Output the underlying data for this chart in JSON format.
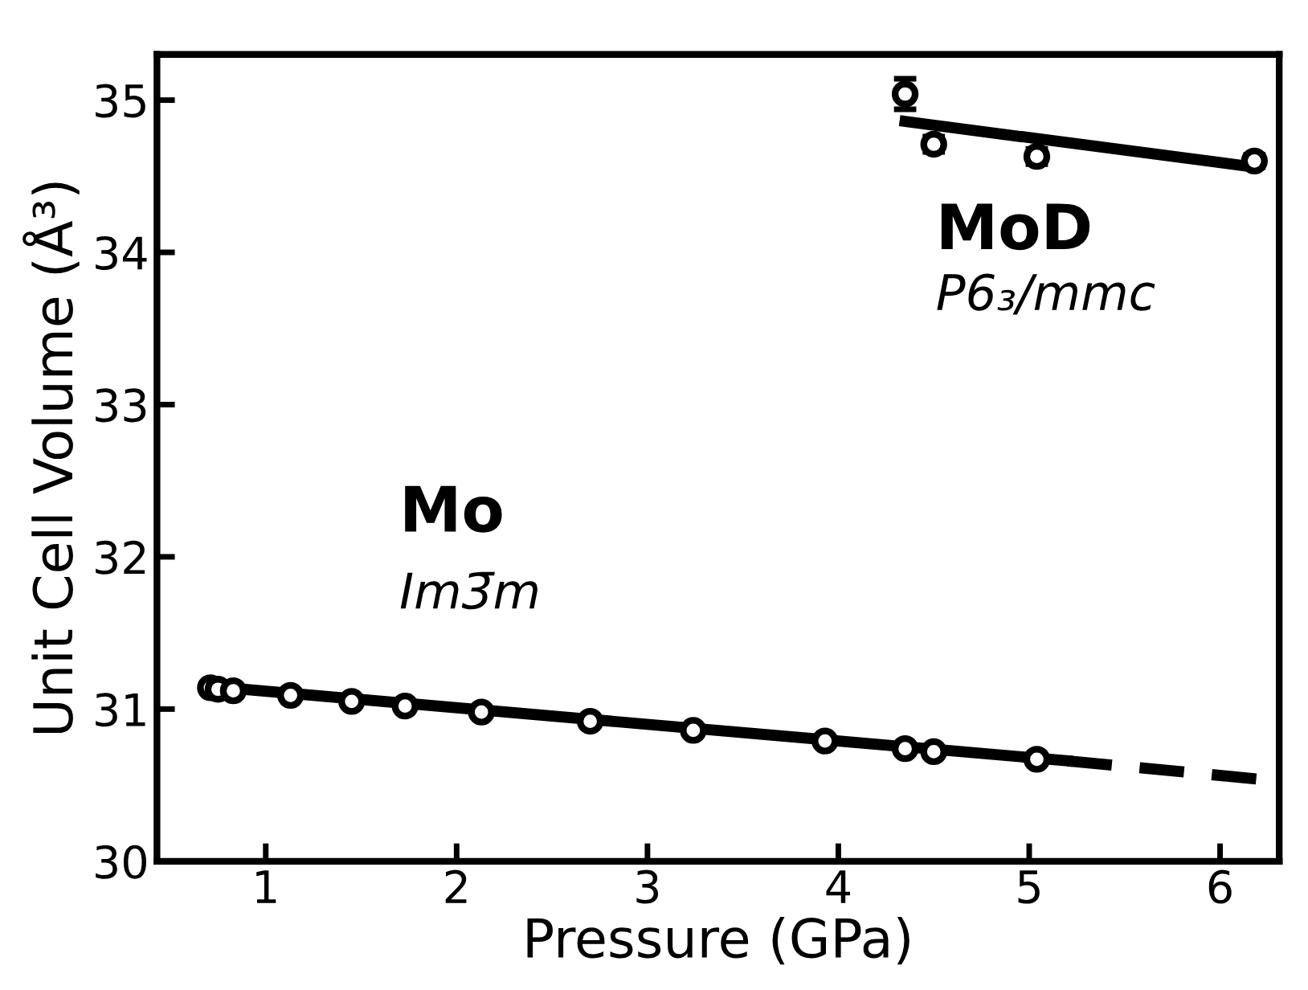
{
  "chart_data": {
    "type": "scatter",
    "xlabel": "Pressure (GPa)",
    "ylabel": "Unit Cell Volume (Å³)",
    "xlim": [
      0.43,
      6.31
    ],
    "ylim": [
      30,
      35.3
    ],
    "xticks": [
      1,
      2,
      3,
      4,
      5,
      6
    ],
    "yticks": [
      30,
      31,
      32,
      33,
      34,
      35
    ],
    "grid": false,
    "legend": false,
    "series": [
      {
        "type": "line",
        "color": "#000000",
        "line_style": "solid",
        "marker": "none",
        "x": [
          0.7,
          5.2
        ],
        "values": [
          31.15,
          30.66
        ]
      },
      {
        "type": "line",
        "color": "#000000",
        "line_style": "dashed",
        "marker": "none",
        "x": [
          5.2,
          6.2
        ],
        "values": [
          30.66,
          30.54
        ]
      },
      {
        "type": "line",
        "color": "#000000",
        "line_style": "solid",
        "marker": "none",
        "x": [
          4.35,
          6.18
        ],
        "values": [
          34.86,
          34.56
        ]
      },
      {
        "color": "#000000",
        "marker": "circle",
        "x": [
          0.71,
          0.75,
          0.83,
          1.13,
          1.45,
          1.73,
          2.13,
          2.7,
          3.24,
          3.93,
          4.35,
          4.5,
          5.04
        ],
        "values": [
          31.14,
          31.13,
          31.12,
          31.09,
          31.05,
          31.02,
          30.98,
          30.92,
          30.86,
          30.79,
          30.74,
          30.72,
          30.67
        ]
      },
      {
        "color": "#000000",
        "marker": "circle",
        "x": [
          4.35,
          4.5,
          5.04,
          6.18
        ],
        "values": [
          35.04,
          34.71,
          34.63,
          34.6
        ],
        "errors": [
          0.1,
          0.05,
          0.05,
          0.04
        ]
      }
    ],
    "annotations": [
      "Mo",
      "Im3̄m",
      "MoD",
      "P6₃/mmc"
    ]
  }
}
